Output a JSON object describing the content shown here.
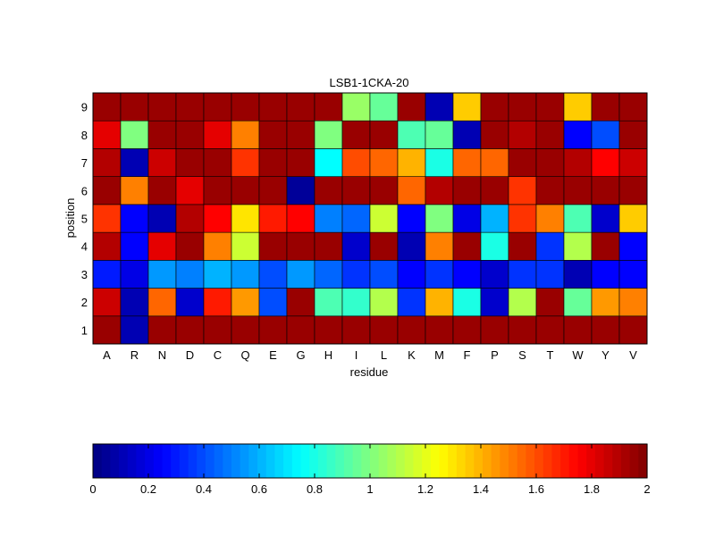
{
  "chart_data": {
    "type": "heatmap",
    "title": "LSB1-1CKA-20",
    "xlabel": "residue",
    "ylabel": "position",
    "x_categories": [
      "A",
      "R",
      "N",
      "D",
      "C",
      "Q",
      "E",
      "G",
      "H",
      "I",
      "L",
      "K",
      "M",
      "F",
      "P",
      "S",
      "T",
      "W",
      "Y",
      "V"
    ],
    "y_categories": [
      "1",
      "2",
      "3",
      "4",
      "5",
      "6",
      "7",
      "8",
      "9"
    ],
    "values": [
      [
        1.95,
        0.1,
        1.95,
        1.95,
        1.95,
        1.95,
        1.95,
        1.95,
        1.95,
        1.95,
        1.95,
        1.95,
        1.95,
        1.95,
        1.95,
        1.95,
        1.95,
        1.95,
        1.95,
        1.95
      ],
      [
        1.85,
        0.1,
        1.55,
        0.15,
        1.7,
        1.45,
        0.4,
        1.95,
        0.9,
        0.85,
        1.1,
        0.35,
        1.4,
        0.8,
        0.15,
        1.1,
        1.95,
        0.95,
        1.45,
        1.5
      ],
      [
        0.3,
        0.2,
        0.55,
        0.5,
        0.6,
        0.55,
        0.4,
        0.55,
        0.45,
        0.35,
        0.4,
        0.25,
        0.35,
        0.25,
        0.15,
        0.35,
        0.35,
        0.1,
        0.25,
        0.25
      ],
      [
        1.9,
        0.25,
        1.8,
        1.95,
        1.5,
        1.15,
        1.95,
        1.95,
        1.95,
        0.15,
        1.95,
        0.1,
        1.5,
        1.95,
        0.8,
        1.95,
        0.35,
        1.1,
        1.95,
        0.25
      ],
      [
        1.65,
        0.25,
        0.1,
        1.9,
        1.75,
        1.3,
        1.7,
        1.75,
        0.5,
        0.45,
        1.15,
        0.25,
        1.0,
        0.2,
        0.6,
        1.65,
        1.5,
        0.9,
        0.15,
        1.35
      ],
      [
        1.95,
        1.5,
        1.95,
        1.8,
        1.95,
        1.95,
        1.95,
        0.05,
        1.95,
        1.95,
        1.95,
        1.55,
        1.9,
        1.95,
        1.95,
        1.65,
        1.95,
        1.95,
        1.95,
        1.95
      ],
      [
        1.9,
        0.1,
        1.85,
        1.95,
        1.95,
        1.65,
        1.95,
        1.95,
        0.75,
        1.6,
        1.55,
        1.4,
        0.8,
        1.55,
        1.55,
        1.95,
        1.95,
        1.9,
        1.75,
        1.85
      ],
      [
        1.8,
        1.0,
        1.95,
        1.95,
        1.8,
        1.5,
        1.95,
        1.95,
        1.0,
        1.95,
        1.95,
        0.9,
        0.95,
        0.1,
        1.95,
        1.9,
        1.95,
        0.25,
        0.4,
        1.95
      ],
      [
        1.95,
        1.95,
        1.95,
        1.95,
        1.95,
        1.95,
        1.95,
        1.95,
        1.95,
        1.05,
        0.95,
        1.95,
        0.1,
        1.35,
        1.95,
        1.95,
        1.95,
        1.35,
        1.95,
        1.95
      ]
    ],
    "colorbar": {
      "range": [
        0,
        2
      ],
      "ticks": [
        "0",
        "0.2",
        "0.4",
        "0.6",
        "0.8",
        "1",
        "1.2",
        "1.4",
        "1.6",
        "1.8",
        "2"
      ],
      "colormap": "jet"
    }
  }
}
